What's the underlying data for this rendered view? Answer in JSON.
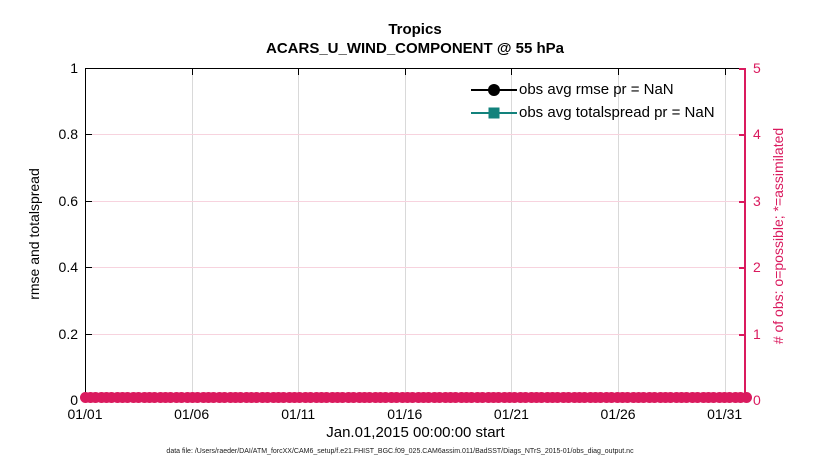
{
  "figure": {
    "caption": "data file: /Users/raeder/DAI/ATM_forcXX/CAM6_setup/f.e21.FHIST_BGC.f09_025.CAM6assim.011/BadSST/Diags_NTrS_2015-01/obs_diag_output.nc"
  },
  "colors": {
    "obs_count_pink": "#da1a5e",
    "grid_pink": "#f7d3de",
    "grid_gray": "#d9d9d9",
    "axis_black": "#000000",
    "rmse_black": "#000000",
    "totalspread_teal": "#12827c"
  },
  "chart_data": {
    "type": "line",
    "title": "Tropics",
    "subtitle": "ACARS_U_WIND_COMPONENT @ 55 hPa",
    "xlabel": "Jan.01,2015 00:00:00 start",
    "ylabel_left": "rmse and totalspread",
    "ylabel_right": "# of obs: o=possible; *=assimilated",
    "xlim_days": [
      0,
      31
    ],
    "xtick_labels": [
      "01/01",
      "01/06",
      "01/11",
      "01/16",
      "01/21",
      "01/26",
      "01/31"
    ],
    "xtick_days": [
      0,
      5,
      10,
      15,
      20,
      25,
      30
    ],
    "ylim_left": [
      0,
      1
    ],
    "ytick_labels_left": [
      "0",
      "0.2",
      "0.4",
      "0.6",
      "0.8",
      "1"
    ],
    "ytick_values_left": [
      0,
      0.2,
      0.4,
      0.6,
      0.8,
      1
    ],
    "ylim_right": [
      0,
      5
    ],
    "ytick_labels_right": [
      "0",
      "1",
      "2",
      "3",
      "4",
      "5"
    ],
    "ytick_values_right": [
      0,
      1,
      2,
      3,
      4,
      5
    ],
    "grid": true,
    "legend_position": "top-right-inside",
    "series": [
      {
        "name": "obs avg rmse pr = NaN",
        "marker": "circle",
        "color": "#000000",
        "axis": "left",
        "values": "NaN"
      },
      {
        "name": "obs avg totalspread pr = NaN",
        "marker": "square",
        "color": "#12827c",
        "axis": "left",
        "values": "NaN"
      },
      {
        "name": "# of obs possible (o)",
        "marker": "circle",
        "color": "#da1a5e",
        "axis": "right",
        "n_points": 124,
        "constant_value": 0
      },
      {
        "name": "# of obs assimilated (*)",
        "marker": "asterisk",
        "color": "#da1a5e",
        "axis": "right",
        "n_points": 124,
        "constant_value": 0
      }
    ]
  }
}
